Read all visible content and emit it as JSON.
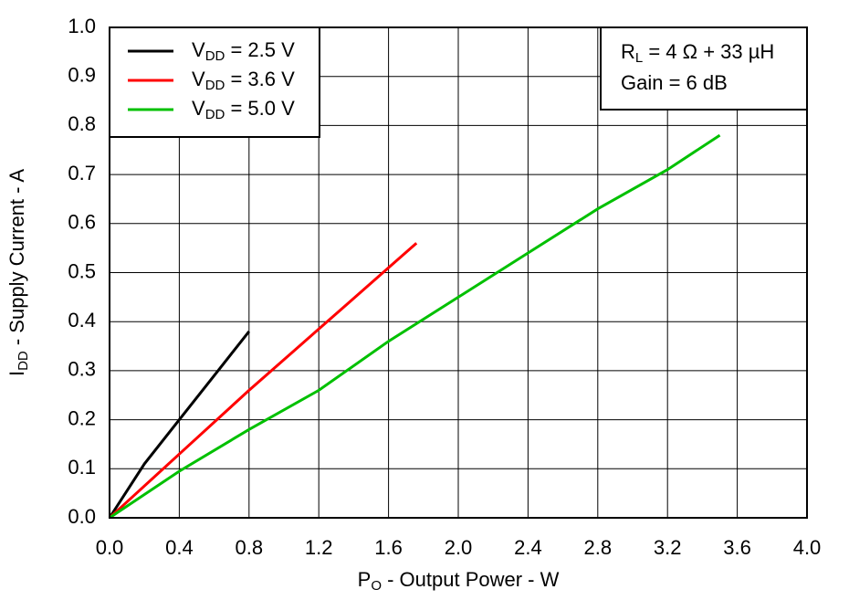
{
  "chart_data": {
    "type": "line",
    "x_label": "PO - Output Power - W",
    "y_label": "IDD - Supply Current - A",
    "annotations": [
      "RL = 4 Ω + 33 µH",
      "Gain = 6 dB"
    ],
    "series": [
      {
        "name": "VDD = 2.5 V",
        "color": "#000000",
        "x": [
          0,
          0.2,
          0.4,
          0.6,
          0.8
        ],
        "values": [
          0,
          0.11,
          0.2,
          0.29,
          0.38
        ]
      },
      {
        "name": "VDD = 3.6 V",
        "color": "#ff0000",
        "x": [
          0,
          0.4,
          0.8,
          1.2,
          1.6,
          1.76
        ],
        "values": [
          0,
          0.13,
          0.26,
          0.385,
          0.51,
          0.56
        ]
      },
      {
        "name": "VDD = 5.0 V",
        "color": "#00c000",
        "x": [
          0,
          0.4,
          0.8,
          1.2,
          1.6,
          2.0,
          2.4,
          2.8,
          3.2,
          3.5
        ],
        "values": [
          0,
          0.095,
          0.18,
          0.26,
          0.36,
          0.45,
          0.54,
          0.63,
          0.71,
          0.78
        ]
      }
    ],
    "xlim": [
      0,
      4.0
    ],
    "ylim": [
      0,
      1.0
    ],
    "xticks": [
      {
        "value": 0,
        "label": "0.0"
      },
      0.4,
      0.8,
      1.2,
      1.6,
      {
        "value": 2,
        "label": "2.0"
      },
      2.4,
      2.8,
      3.2,
      3.6,
      {
        "value": 4,
        "label": "4.0"
      }
    ],
    "yticks": [
      {
        "value": 0,
        "label": "0.0"
      },
      0.1,
      0.2,
      0.3,
      0.4,
      0.5,
      0.6,
      0.7,
      0.8,
      0.9,
      {
        "value": 1,
        "label": "1.0"
      }
    ],
    "grid": true
  }
}
